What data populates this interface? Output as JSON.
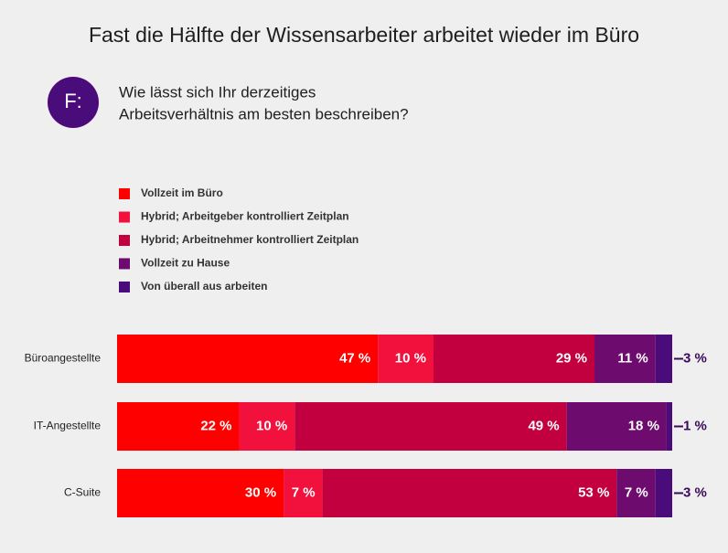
{
  "chart_data": {
    "type": "stacked-bar-horizontal",
    "title": "Fast die Hälfte der Wissensarbeiter arbeitet wieder im Büro",
    "badge": "F:",
    "question": [
      "Wie lässt sich Ihr derzeitiges",
      "Arbeitsverhältnis am besten beschreiben?"
    ],
    "categories": [
      "Büroangestellte",
      "IT-Angestellte",
      "C-Suite"
    ],
    "xlim": [
      0,
      100
    ],
    "series": [
      {
        "name": "Vollzeit im Büro",
        "color": "#ff0000",
        "values": [
          47,
          22,
          30
        ],
        "value_labels": [
          "47 %",
          "22 %",
          "30 %"
        ]
      },
      {
        "name": "Hybrid; Arbeitgeber kontrolliert Zeitplan",
        "color": "#f2103c",
        "values": [
          10,
          10,
          7
        ],
        "value_labels": [
          "10 %",
          "10 %",
          "7 %"
        ]
      },
      {
        "name": "Hybrid; Arbeitnehmer kontrolliert Zeitplan",
        "color": "#c3003f",
        "values": [
          29,
          49,
          53
        ],
        "value_labels": [
          "29 %",
          "49 %",
          "53 %"
        ]
      },
      {
        "name": "Vollzeit zu Hause",
        "color": "#6e0b6e",
        "values": [
          11,
          18,
          7
        ],
        "value_labels": [
          "11 %",
          "18 %",
          "7 %"
        ]
      },
      {
        "name": "Von überall aus arbeiten",
        "color": "#4b0c7b",
        "values": [
          3,
          1,
          3
        ],
        "value_labels": [
          "3 %",
          "1 %",
          "3 %"
        ]
      }
    ]
  }
}
